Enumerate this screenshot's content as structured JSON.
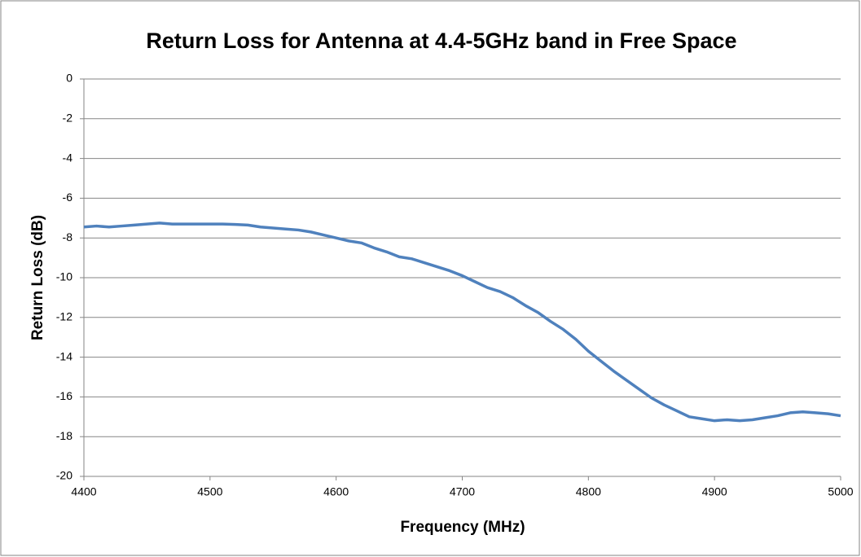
{
  "chart_data": {
    "type": "line",
    "title": "Return Loss for Antenna at 4.4-5GHz band in Free Space",
    "xlabel": "Frequency  (MHz)",
    "ylabel": "Return Loss (dB)",
    "x": [
      4400,
      4410,
      4420,
      4430,
      4440,
      4450,
      4460,
      4470,
      4480,
      4490,
      4500,
      4510,
      4520,
      4530,
      4540,
      4550,
      4560,
      4570,
      4580,
      4590,
      4600,
      4610,
      4620,
      4630,
      4640,
      4650,
      4660,
      4670,
      4680,
      4690,
      4700,
      4710,
      4720,
      4730,
      4740,
      4750,
      4760,
      4770,
      4780,
      4790,
      4800,
      4810,
      4820,
      4830,
      4840,
      4850,
      4860,
      4870,
      4880,
      4890,
      4900,
      4910,
      4920,
      4930,
      4940,
      4950,
      4960,
      4970,
      4980,
      4990,
      5000
    ],
    "series": [
      {
        "name": "Return Loss",
        "color": "#4f81bd",
        "values": [
          -7.45,
          -7.4,
          -7.45,
          -7.4,
          -7.35,
          -7.3,
          -7.25,
          -7.3,
          -7.3,
          -7.3,
          -7.3,
          -7.3,
          -7.32,
          -7.35,
          -7.45,
          -7.5,
          -7.55,
          -7.6,
          -7.7,
          -7.85,
          -8.0,
          -8.15,
          -8.25,
          -8.5,
          -8.7,
          -8.95,
          -9.05,
          -9.25,
          -9.45,
          -9.65,
          -9.9,
          -10.2,
          -10.5,
          -10.7,
          -11.0,
          -11.4,
          -11.75,
          -12.2,
          -12.6,
          -13.1,
          -13.7,
          -14.2,
          -14.7,
          -15.15,
          -15.6,
          -16.05,
          -16.4,
          -16.7,
          -17.0,
          -17.1,
          -17.2,
          -17.15,
          -17.2,
          -17.15,
          -17.05,
          -16.95,
          -16.8,
          -16.75,
          -16.8,
          -16.85,
          -16.95
        ]
      }
    ],
    "xlim": [
      4400,
      5000
    ],
    "xticks": [
      4400,
      4500,
      4600,
      4700,
      4800,
      4900,
      5000
    ],
    "ylim": [
      -20,
      0
    ],
    "yticks": [
      0,
      -2,
      -4,
      -6,
      -8,
      -10,
      -12,
      -14,
      -16,
      -18,
      -20
    ],
    "grid": true
  }
}
